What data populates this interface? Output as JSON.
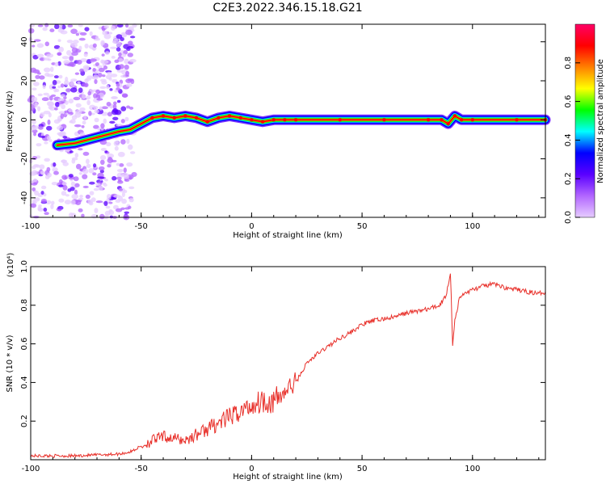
{
  "title": "C2E3.2022.346.15.18.G21",
  "chart_data": [
    {
      "type": "heatmap",
      "xlabel": "Height of straight line (km)",
      "ylabel": "Frequency (Hz)",
      "xlim": [
        -100,
        133
      ],
      "ylim": [
        -50,
        49
      ],
      "xticks": [
        -100,
        -50,
        0,
        50,
        100
      ],
      "yticks": [
        -40,
        -20,
        0,
        20,
        40
      ],
      "colorbar": {
        "label": "Normalized spectral amplitude",
        "range": [
          0,
          1
        ],
        "ticks": [
          "0.0",
          "0.2",
          "0.4",
          "0.6",
          "0.8"
        ],
        "colors": [
          "#e6ccff",
          "#b266ff",
          "#5a00ff",
          "#0000ff",
          "#00ffff",
          "#00ff00",
          "#ffff00",
          "#ff8000",
          "#ff0000",
          "#ff0066"
        ]
      },
      "ridge_x": [
        -88,
        -80,
        -70,
        -60,
        -55,
        -50,
        -45,
        -40,
        -35,
        -30,
        -25,
        -20,
        -15,
        -10,
        -5,
        0,
        5,
        10,
        15,
        20,
        40,
        60,
        80,
        86,
        89,
        92,
        95,
        100,
        120,
        133
      ],
      "ridge_y": [
        -13,
        -12,
        -9,
        -6,
        -5,
        -2,
        1,
        2,
        1,
        2,
        1,
        -1,
        1,
        2,
        1,
        0,
        -1,
        0,
        0,
        0,
        0,
        0,
        0,
        0,
        -2,
        2,
        0,
        0,
        0,
        0
      ],
      "noise_region_x": [
        -100,
        -53
      ]
    },
    {
      "type": "line",
      "xlabel": "Height of straight line (km)",
      "ylabel": "SNR (10 * v/v)",
      "multiplier": "(x10⁴)",
      "xlim": [
        -100,
        133
      ],
      "ylim": [
        0,
        1.0
      ],
      "xticks": [
        -100,
        -50,
        0,
        50,
        100
      ],
      "yticks": [
        "0.2",
        "0.4",
        "0.6",
        "0.8",
        "1.0"
      ],
      "color": "#e8302a",
      "series": [
        {
          "x": [
            -100,
            -80,
            -60,
            -55,
            -50,
            -45,
            -40,
            -35,
            -30,
            -25,
            -20,
            -15,
            -10,
            -5,
            0,
            5,
            10,
            15,
            20,
            25,
            30,
            35,
            40,
            45,
            50,
            55,
            60,
            65,
            70,
            75,
            80,
            85,
            88,
            90,
            91,
            92,
            94,
            96,
            100,
            105,
            110,
            115,
            120,
            125,
            130,
            133
          ],
          "y": [
            0.02,
            0.02,
            0.03,
            0.04,
            0.07,
            0.1,
            0.12,
            0.11,
            0.1,
            0.13,
            0.16,
            0.19,
            0.22,
            0.25,
            0.28,
            0.31,
            0.3,
            0.35,
            0.4,
            0.5,
            0.55,
            0.59,
            0.63,
            0.66,
            0.7,
            0.72,
            0.73,
            0.74,
            0.76,
            0.77,
            0.78,
            0.8,
            0.85,
            0.97,
            0.6,
            0.72,
            0.83,
            0.86,
            0.88,
            0.9,
            0.91,
            0.89,
            0.88,
            0.87,
            0.86,
            0.87
          ]
        }
      ]
    }
  ]
}
